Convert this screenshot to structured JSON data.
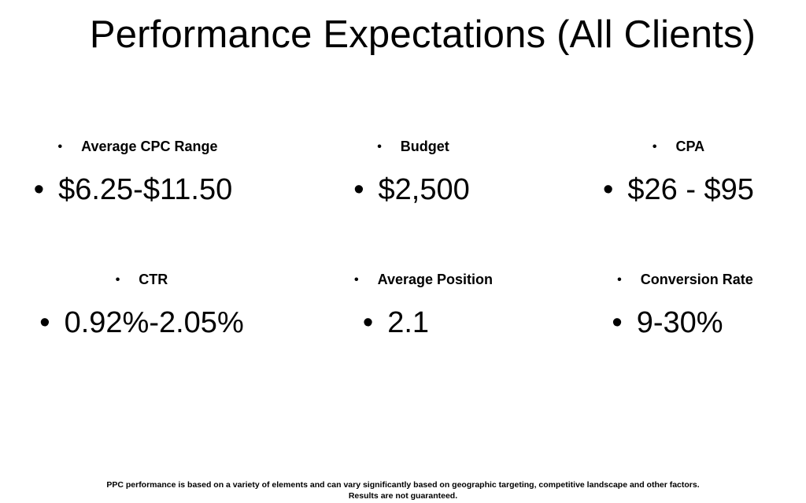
{
  "title": "Performance Expectations (All Clients)",
  "bullet": "•",
  "metrics": [
    {
      "label": "Average CPC Range",
      "value": "$6.25-$11.50"
    },
    {
      "label": "Budget",
      "value": "$2,500"
    },
    {
      "label": "CPA",
      "value": "$26 - $95"
    },
    {
      "label": "CTR",
      "value": "0.92%-2.05%"
    },
    {
      "label": "Average Position",
      "value": "2.1"
    },
    {
      "label": "Conversion Rate",
      "value": "9-30%"
    }
  ],
  "footer": {
    "line1": "PPC performance is based on a variety of elements and can vary significantly based on geographic targeting, competitive landscape and other factors.",
    "line2": "Results are not guaranteed."
  }
}
